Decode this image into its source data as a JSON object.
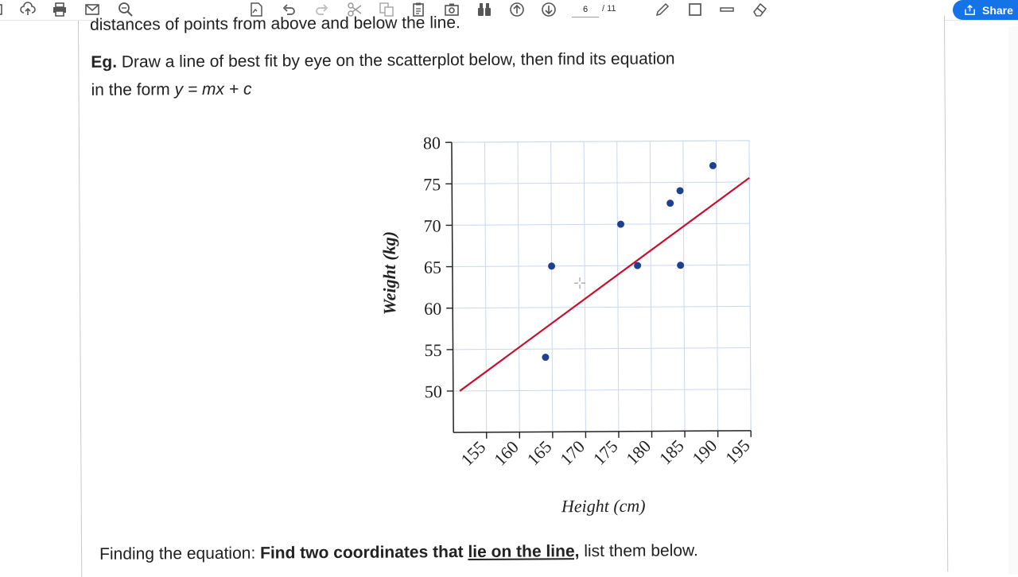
{
  "toolbar": {
    "current_page": "6",
    "page_separator": "/ 11",
    "share_label": "Share",
    "icons": [
      "upload-icon",
      "print-icon",
      "email-icon",
      "zoom-icon",
      "sign-icon",
      "undo-icon",
      "redo-icon",
      "cut-icon",
      "copy-icon",
      "paste-icon",
      "snapshot-icon",
      "binoculars-icon",
      "page-up-icon",
      "page-down-icon",
      "pencil-icon",
      "rectangle-icon",
      "line-icon",
      "eraser-icon"
    ]
  },
  "document": {
    "cut_off_text": "distances of points from above and below the line.",
    "eg_label": "Eg.",
    "eg_text": "Draw a line of best fit by eye on the scatterplot below, then find its equation",
    "eg_line2_prefix": "in the form ",
    "eg_line2_formula": "y = mx + c",
    "finding_prefix": "Finding the equation: ",
    "finding_bold": "Find two coordinates that ",
    "finding_underlined": "lie on the line,",
    "finding_suffix": " list them below."
  },
  "chart_data": {
    "type": "scatter",
    "xlabel": "Height (cm)",
    "ylabel": "Weight (kg)",
    "xlim": [
      150,
      195
    ],
    "ylim": [
      45,
      80
    ],
    "x_ticks": [
      155,
      160,
      165,
      170,
      175,
      180,
      185,
      190,
      195
    ],
    "y_ticks": [
      50,
      55,
      60,
      65,
      70,
      75,
      80
    ],
    "grid": true,
    "points": [
      {
        "x": 164,
        "y": 54
      },
      {
        "x": 165,
        "y": 65
      },
      {
        "x": 175.5,
        "y": 70
      },
      {
        "x": 178,
        "y": 65
      },
      {
        "x": 183,
        "y": 72.5
      },
      {
        "x": 184.5,
        "y": 74
      },
      {
        "x": 184.5,
        "y": 65
      },
      {
        "x": 189.5,
        "y": 77
      }
    ],
    "best_fit_line": {
      "x1": 151,
      "y1": 50,
      "x2": 195,
      "y2": 75.5
    },
    "line_color": "#c8102e",
    "point_color": "#1f3f8f",
    "grid_color": "#c9d8ee"
  }
}
